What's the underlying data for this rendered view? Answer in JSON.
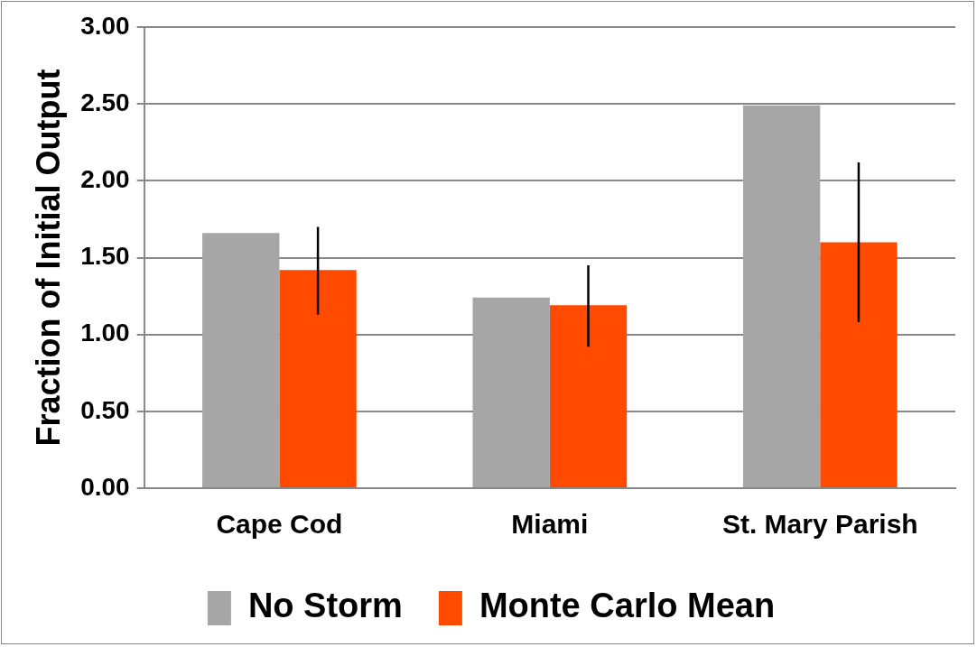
{
  "chart_data": {
    "type": "bar",
    "ylabel": "Fraction of Initial Output",
    "categories": [
      "Cape Cod",
      "Miami",
      "St. Mary Parish"
    ],
    "series": [
      {
        "name": "No Storm",
        "color": "#a6a6a6",
        "values": [
          1.66,
          1.24,
          2.49
        ]
      },
      {
        "name": "Monte Carlo Mean",
        "color": "#ff4a00",
        "values": [
          1.42,
          1.19,
          1.6
        ],
        "errors": [
          [
            1.13,
            1.7
          ],
          [
            0.92,
            1.45
          ],
          [
            1.08,
            2.12
          ]
        ]
      }
    ],
    "ylim": [
      0,
      3
    ],
    "yticks": [
      {
        "value": 0,
        "label": "0.00"
      },
      {
        "value": 0.5,
        "label": "0.50"
      },
      {
        "value": 1,
        "label": "1.00"
      },
      {
        "value": 1.5,
        "label": "1.50"
      },
      {
        "value": 2,
        "label": "2.00"
      },
      {
        "value": 2.5,
        "label": "2.50"
      },
      {
        "value": 3,
        "label": "3.00"
      }
    ],
    "grid": "y",
    "legend": "bottom"
  }
}
